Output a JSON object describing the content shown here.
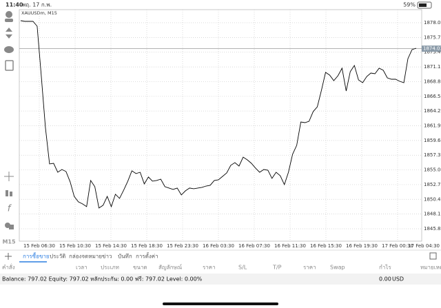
{
  "status_bar": {
    "time": "11:40",
    "date": "พฤ. 17 ก.พ.",
    "battery": "59%"
  },
  "chart": {
    "type": "line",
    "symbol": "XAUUSDm, M15",
    "timeframe": "M15",
    "color": "#000000",
    "grid": true,
    "x_labels": [
      "15 Feb 06:30",
      "15 Feb 10:30",
      "15 Feb 14:30",
      "15 Feb 18:30",
      "15 Feb 23:30",
      "16 Feb 03:30",
      "16 Feb 07:30",
      "16 Feb 11:30",
      "16 Feb 15:30",
      "16 Feb 19:30",
      "17 Feb 00:30",
      "17 Feb 04:30"
    ],
    "values": [
      1878.42,
      1878.31,
      1878.31,
      1878.31,
      1877.56,
      1869.79,
      1861.7,
      1855.98,
      1856.08,
      1854.68,
      1855.11,
      1854.79,
      1853.17,
      1850.9,
      1850.04,
      1849.72,
      1849.29,
      1853.39,
      1852.42,
      1849.07,
      1849.5,
      1850.9,
      1849.29,
      1851.23,
      1850.58,
      1851.88,
      1853.28,
      1854.9,
      1854.47,
      1854.68,
      1852.85,
      1853.93,
      1853.28,
      1853.39,
      1853.6,
      1852.42,
      1852.2,
      1851.99,
      1852.2,
      1851.12,
      1851.77,
      1852.2,
      1852.09,
      1852.2,
      1852.31,
      1852.52,
      1852.63,
      1853.39,
      1853.49,
      1854.03,
      1854.57,
      1855.76,
      1856.19,
      1855.65,
      1857.05,
      1856.62,
      1856.08,
      1855.33,
      1854.68,
      1855.11,
      1855.0,
      1853.71,
      1854.68,
      1854.14,
      1852.74,
      1854.68,
      1857.49,
      1858.89,
      1862.56,
      1862.45,
      1862.66,
      1864.18,
      1864.93,
      1867.52,
      1870.33,
      1869.89,
      1869.03,
      1869.79,
      1870.97,
      1867.41,
      1870.43,
      1871.41,
      1869.14,
      1868.71,
      1869.68,
      1870.22,
      1870.11,
      1870.97,
      1870.65,
      1869.46,
      1869.25,
      1869.25,
      1868.92,
      1868.71,
      1872.48,
      1873.89,
      1874.1
    ],
    "ylim": [
      1843.88,
      1880.15
    ],
    "yticks": [
      1878.095,
      {
        "value": 1875.79,
        "label": "1875.790"
      },
      1873.485,
      {
        "value": 1871.18,
        "label": "1871.180"
      },
      1868.875,
      {
        "value": 1866.57,
        "label": "1866.570"
      },
      1864.265,
      {
        "value": 1861.96,
        "label": "1861.960"
      },
      1859.655,
      {
        "value": 1857.35,
        "label": "1857.350"
      },
      1855.045,
      {
        "value": 1852.74,
        "label": "1852.740"
      },
      1850.435,
      {
        "value": 1848.13,
        "label": "1848.130"
      },
      1845.825
    ],
    "current_price": 1874.037
  },
  "tabs": [
    "การซื้อขาย",
    "ประวัติ",
    "กล่องจดหมาย",
    "ข่าว",
    "บันทึก",
    "การตั้งค่า"
  ],
  "columns": [
    "คำสั่ง",
    "เวลา",
    "ประเภท",
    "ขนาด",
    "สัญลักษณ์",
    "ราคา",
    "S/L",
    "T/P",
    "ราคา",
    "Swap",
    "กำไร",
    "หมายเหตุ"
  ],
  "balance": {
    "summary": "Balance: 797.02 Equity: 797.02 หลักประกัน: 0.00 ฟรี: 797.02 Level: 0.00%",
    "profit": "0.00",
    "currency": "USD"
  }
}
